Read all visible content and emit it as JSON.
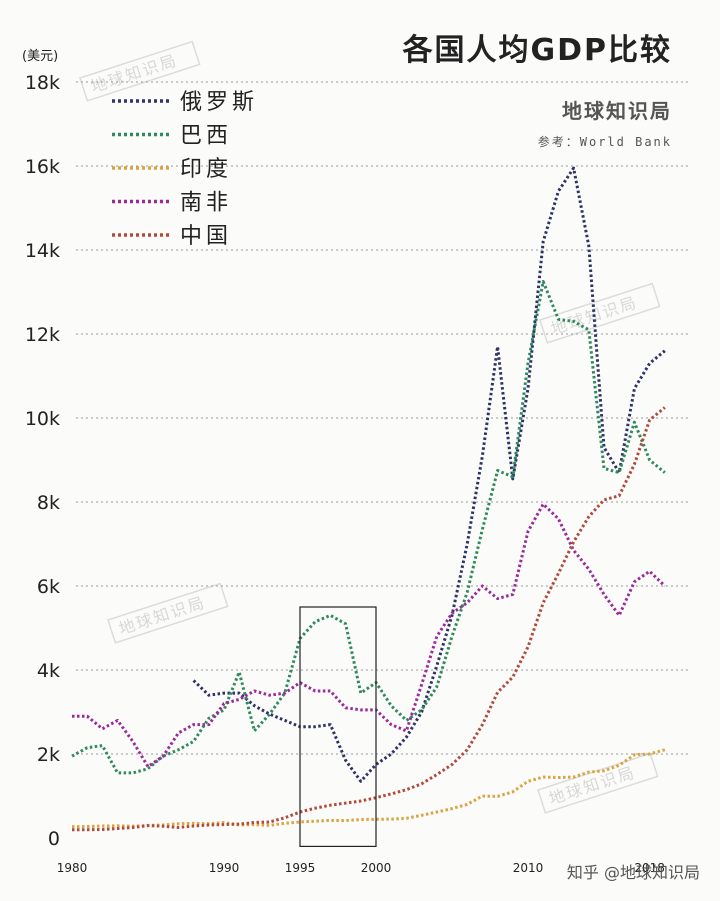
{
  "header": {
    "title": "各国人均GDP比较",
    "unit": "(美元)",
    "brand": "地球知识局",
    "source": "参考：World Bank"
  },
  "watermark": {
    "text": "地球知识局",
    "footer": "知乎 @地球知识局"
  },
  "chart_data": {
    "type": "line",
    "title": "各国人均GDP比较",
    "ylabel": "(美元)",
    "ylim": [
      0,
      18000
    ],
    "xlim": [
      1980,
      2020
    ],
    "yticks": [
      0,
      2000,
      4000,
      6000,
      8000,
      10000,
      12000,
      14000,
      16000,
      18000
    ],
    "ytick_labels": [
      "0",
      "2k",
      "4k",
      "6k",
      "8k",
      "10k",
      "12k",
      "14k",
      "16k",
      "18k"
    ],
    "xticks": [
      1980,
      1990,
      1995,
      2000,
      2010,
      2018
    ],
    "xtick_labels": [
      "1980",
      "1990",
      "1995",
      "2000",
      "2010",
      "2018"
    ],
    "grid": true,
    "legend_position": "top-left",
    "highlight_box": {
      "x": [
        1995,
        2000
      ],
      "y": [
        -200,
        5500
      ]
    },
    "series": [
      {
        "name": "俄罗斯",
        "color": "#2e3266",
        "x": [
          1988,
          1989,
          1990,
          1991,
          1992,
          1993,
          1994,
          1995,
          1996,
          1997,
          1998,
          1999,
          2000,
          2001,
          2002,
          2003,
          2004,
          2005,
          2006,
          2007,
          2008,
          2009,
          2010,
          2011,
          2012,
          2013,
          2014,
          2015,
          2016,
          2017,
          2018,
          2019
        ],
        "y": [
          3750,
          3400,
          3450,
          3450,
          3150,
          2950,
          2800,
          2650,
          2650,
          2700,
          1850,
          1350,
          1750,
          2000,
          2400,
          3000,
          4100,
          5300,
          7000,
          9100,
          11700,
          8550,
          10700,
          14200,
          15400,
          15950,
          14100,
          9300,
          8700,
          10700,
          11300,
          11600
        ]
      },
      {
        "name": "巴西",
        "color": "#2e8a5c",
        "x": [
          1980,
          1981,
          1982,
          1983,
          1984,
          1985,
          1986,
          1987,
          1988,
          1989,
          1990,
          1991,
          1992,
          1993,
          1994,
          1995,
          1996,
          1997,
          1998,
          1999,
          2000,
          2001,
          2002,
          2003,
          2004,
          2005,
          2006,
          2007,
          2008,
          2009,
          2010,
          2011,
          2012,
          2013,
          2014,
          2015,
          2016,
          2017,
          2018,
          2019
        ],
        "y": [
          1950,
          2150,
          2200,
          1550,
          1550,
          1650,
          1950,
          2100,
          2300,
          2850,
          3050,
          3950,
          2550,
          2950,
          3450,
          4750,
          5150,
          5300,
          5100,
          3450,
          3700,
          3150,
          2800,
          3050,
          3600,
          4800,
          5850,
          7350,
          8750,
          8600,
          11300,
          13250,
          12350,
          12300,
          12100,
          8800,
          8700,
          9900,
          9000,
          8700
        ]
      },
      {
        "name": "印度",
        "color": "#d9a441",
        "x": [
          1980,
          1981,
          1982,
          1983,
          1984,
          1985,
          1986,
          1987,
          1988,
          1989,
          1990,
          1991,
          1992,
          1993,
          1994,
          1995,
          1996,
          1997,
          1998,
          1999,
          2000,
          2001,
          2002,
          2003,
          2004,
          2005,
          2006,
          2007,
          2008,
          2009,
          2010,
          2011,
          2012,
          2013,
          2014,
          2015,
          2016,
          2017,
          2018,
          2019
        ],
        "y": [
          270,
          275,
          285,
          290,
          280,
          300,
          310,
          340,
          350,
          340,
          370,
          310,
          320,
          300,
          350,
          380,
          400,
          420,
          415,
          440,
          445,
          450,
          470,
          540,
          620,
          700,
          800,
          1000,
          990,
          1100,
          1350,
          1450,
          1440,
          1450,
          1570,
          1600,
          1730,
          1980,
          2000,
          2100
        ]
      },
      {
        "name": "南非",
        "color": "#9b2a9b",
        "x": [
          1980,
          1981,
          1982,
          1983,
          1984,
          1985,
          1986,
          1987,
          1988,
          1989,
          1990,
          1991,
          1992,
          1993,
          1994,
          1995,
          1996,
          1997,
          1998,
          1999,
          2000,
          2001,
          2002,
          2003,
          2004,
          2005,
          2006,
          2007,
          2008,
          2009,
          2010,
          2011,
          2012,
          2013,
          2014,
          2015,
          2016,
          2017,
          2018,
          2019
        ],
        "y": [
          2900,
          2900,
          2600,
          2800,
          2300,
          1700,
          1950,
          2500,
          2700,
          2700,
          3200,
          3300,
          3500,
          3400,
          3450,
          3700,
          3500,
          3500,
          3100,
          3050,
          3050,
          2700,
          2550,
          3650,
          4800,
          5350,
          5600,
          6000,
          5700,
          5800,
          7300,
          7950,
          7600,
          6850,
          6400,
          5800,
          5300,
          6100,
          6350,
          6000
        ]
      },
      {
        "name": "中国",
        "color": "#b04a3a",
        "x": [
          1980,
          1981,
          1982,
          1983,
          1984,
          1985,
          1986,
          1987,
          1988,
          1989,
          1990,
          1991,
          1992,
          1993,
          1994,
          1995,
          1996,
          1997,
          1998,
          1999,
          2000,
          2001,
          2002,
          2003,
          2004,
          2005,
          2006,
          2007,
          2008,
          2009,
          2010,
          2011,
          2012,
          2013,
          2014,
          2015,
          2016,
          2017,
          2018,
          2019
        ],
        "y": [
          195,
          197,
          203,
          225,
          250,
          295,
          280,
          250,
          285,
          310,
          320,
          330,
          370,
          380,
          480,
          620,
          710,
          780,
          830,
          880,
          960,
          1050,
          1150,
          1290,
          1510,
          1750,
          2100,
          2700,
          3470,
          3830,
          4550,
          5600,
          6300,
          7050,
          7650,
          8050,
          8150,
          8900,
          9950,
          10250
        ]
      }
    ]
  }
}
